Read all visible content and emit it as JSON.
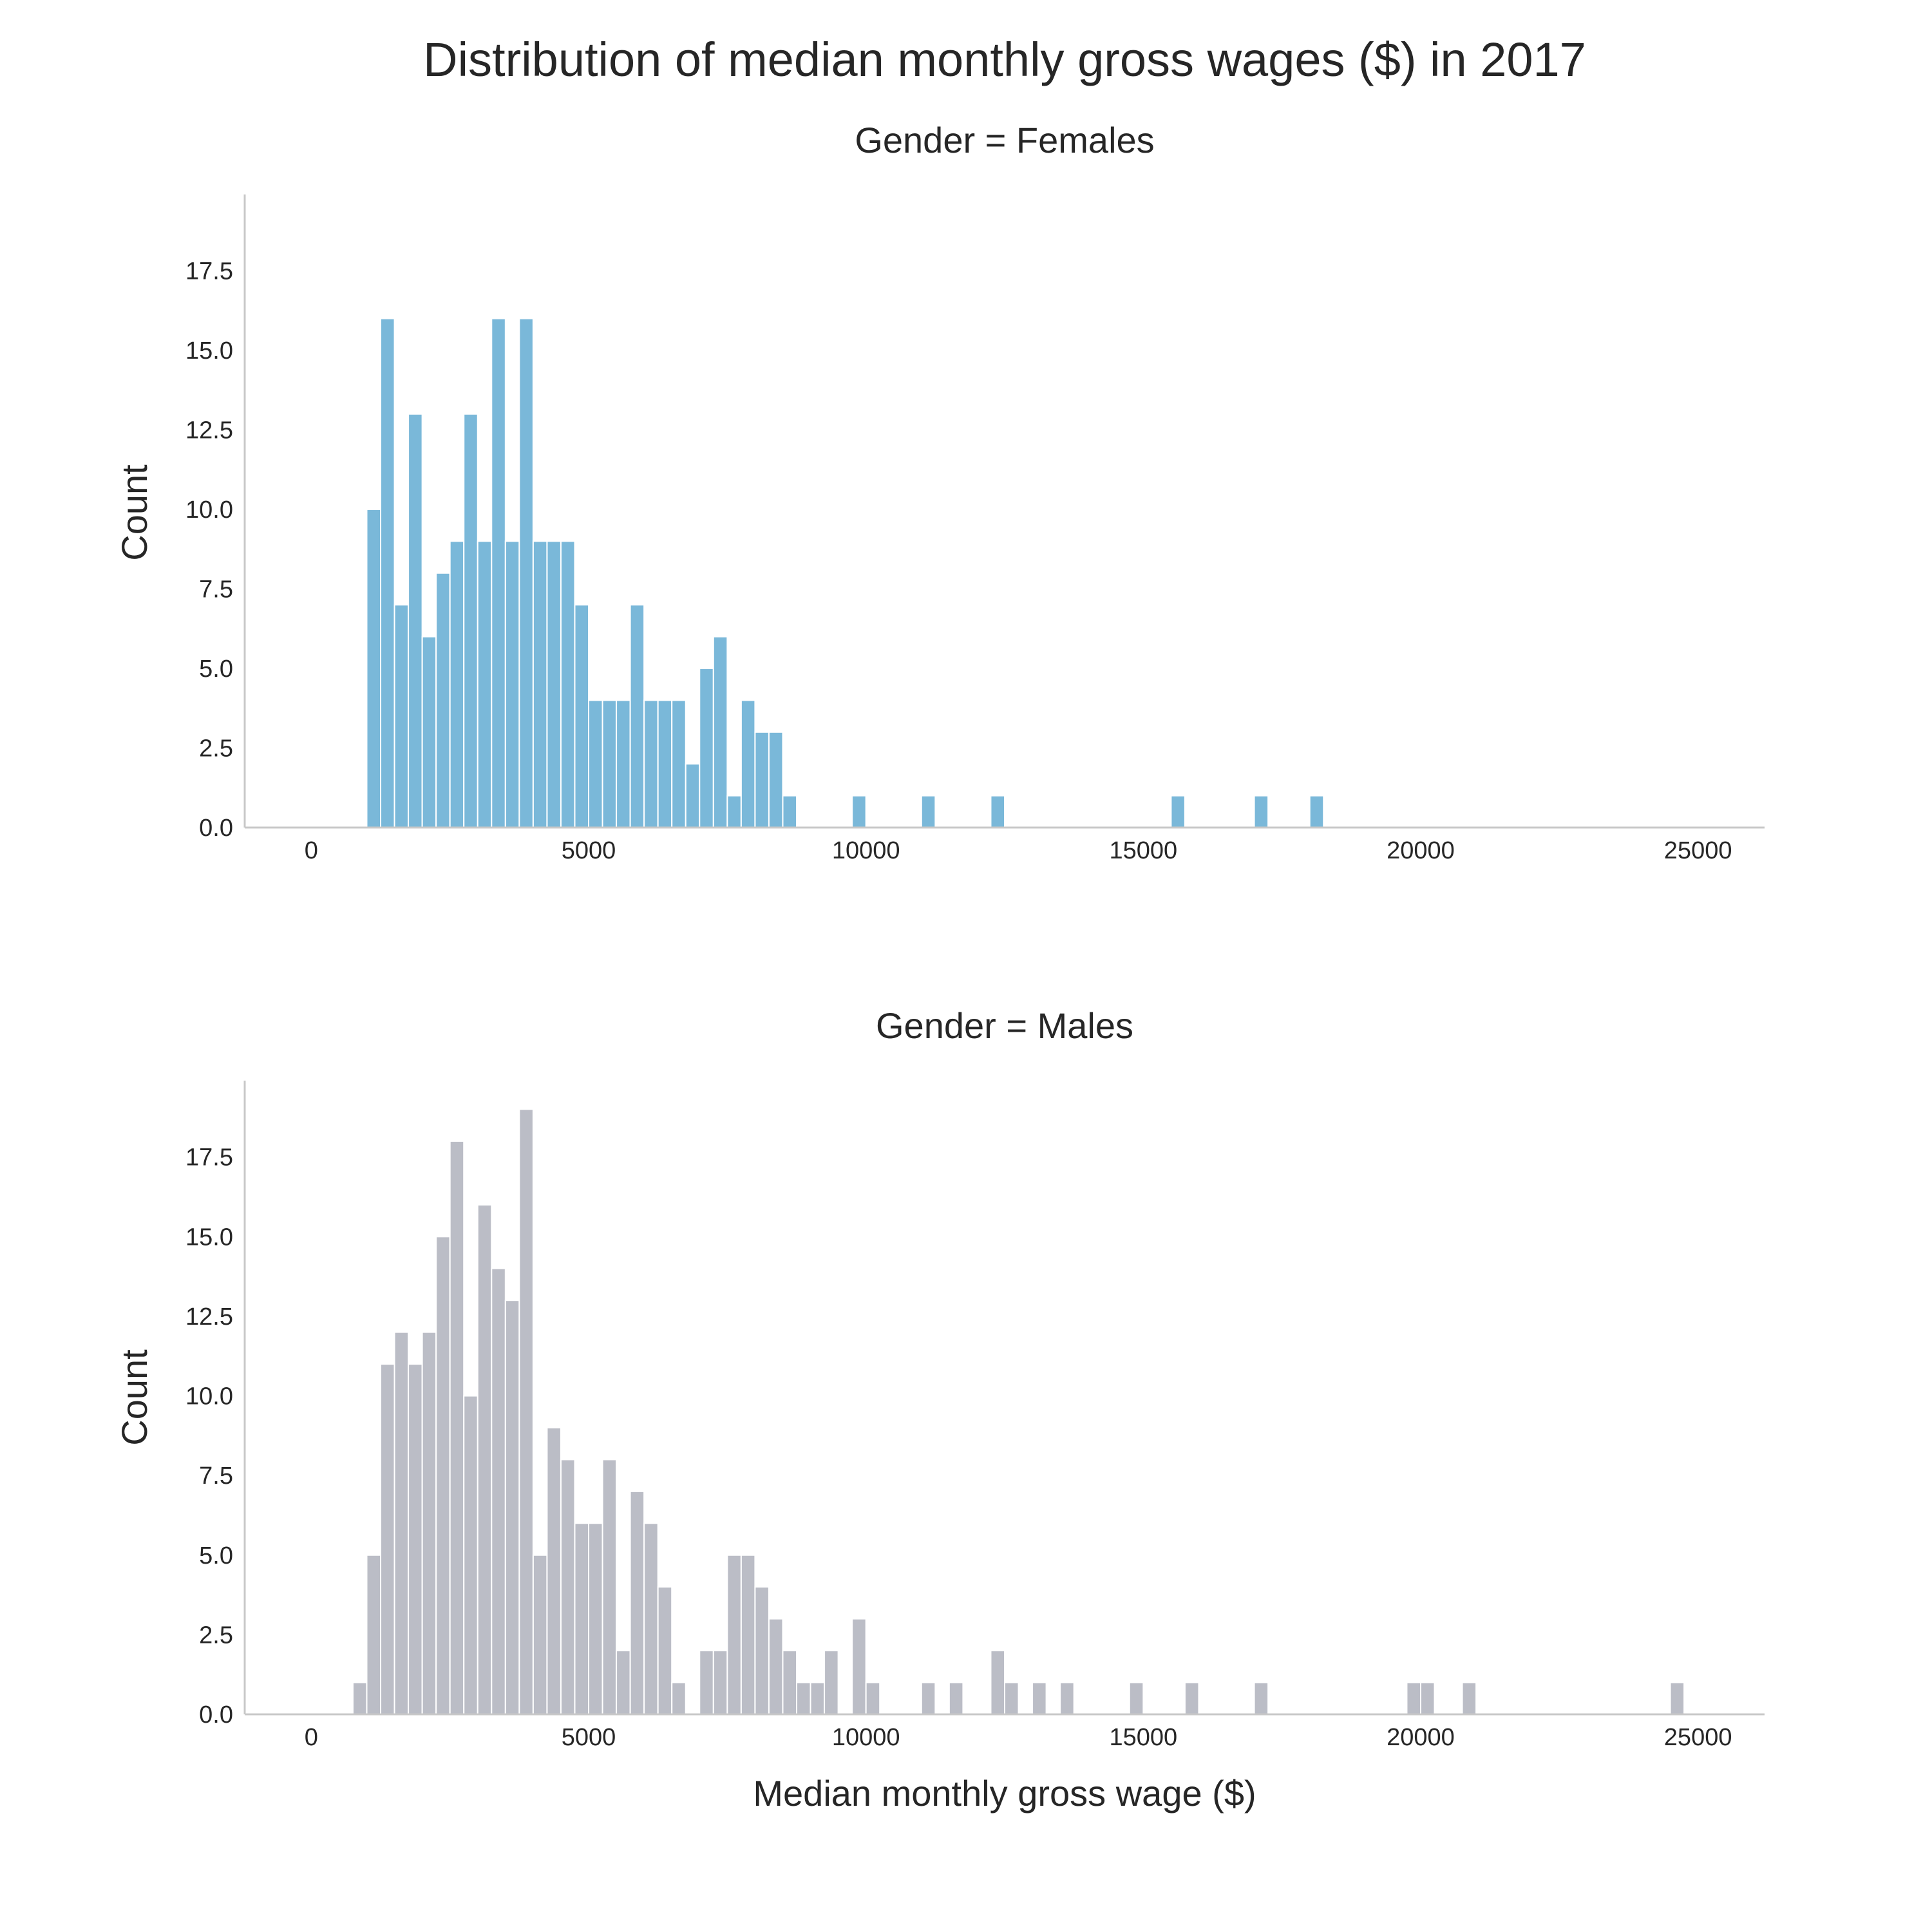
{
  "figure": {
    "title": "Distribution of median monthly gross wages ($) in 2017",
    "xlabel": "Median monthly gross wage ($)"
  },
  "chart_data": [
    {
      "type": "bar",
      "title": "Gender = Females",
      "ylabel": "Count",
      "color": "#7ab8d9",
      "xlim": [
        -1200,
        26200
      ],
      "ylim": [
        0,
        19.9
      ],
      "xticks": [
        0,
        5000,
        10000,
        15000,
        20000,
        25000
      ],
      "yticks": [
        0.0,
        2.5,
        5.0,
        7.5,
        10.0,
        12.5,
        15.0,
        17.5
      ],
      "bin_width": 250,
      "bins": [
        {
          "x": 1000,
          "count": 10
        },
        {
          "x": 1250,
          "count": 16
        },
        {
          "x": 1500,
          "count": 7
        },
        {
          "x": 1750,
          "count": 13
        },
        {
          "x": 2000,
          "count": 6
        },
        {
          "x": 2250,
          "count": 8
        },
        {
          "x": 2500,
          "count": 9
        },
        {
          "x": 2750,
          "count": 13
        },
        {
          "x": 3000,
          "count": 9
        },
        {
          "x": 3250,
          "count": 16
        },
        {
          "x": 3500,
          "count": 9
        },
        {
          "x": 3750,
          "count": 16
        },
        {
          "x": 4000,
          "count": 9
        },
        {
          "x": 4250,
          "count": 9
        },
        {
          "x": 4500,
          "count": 9
        },
        {
          "x": 4750,
          "count": 7
        },
        {
          "x": 5000,
          "count": 4
        },
        {
          "x": 5250,
          "count": 4
        },
        {
          "x": 5500,
          "count": 4
        },
        {
          "x": 5750,
          "count": 7
        },
        {
          "x": 6000,
          "count": 4
        },
        {
          "x": 6250,
          "count": 4
        },
        {
          "x": 6500,
          "count": 4
        },
        {
          "x": 6750,
          "count": 2
        },
        {
          "x": 7000,
          "count": 5
        },
        {
          "x": 7250,
          "count": 6
        },
        {
          "x": 7500,
          "count": 1
        },
        {
          "x": 7750,
          "count": 4
        },
        {
          "x": 8000,
          "count": 3
        },
        {
          "x": 8250,
          "count": 3
        },
        {
          "x": 8500,
          "count": 1
        },
        {
          "x": 9750,
          "count": 1
        },
        {
          "x": 11000,
          "count": 1
        },
        {
          "x": 12250,
          "count": 1
        },
        {
          "x": 15500,
          "count": 1
        },
        {
          "x": 17000,
          "count": 1
        },
        {
          "x": 18000,
          "count": 1
        }
      ]
    },
    {
      "type": "bar",
      "title": "Gender = Males",
      "ylabel": "Count",
      "color": "#bbbdc6",
      "xlim": [
        -1200,
        26200
      ],
      "ylim": [
        0,
        19.9
      ],
      "xticks": [
        0,
        5000,
        10000,
        15000,
        20000,
        25000
      ],
      "yticks": [
        0.0,
        2.5,
        5.0,
        7.5,
        10.0,
        12.5,
        15.0,
        17.5
      ],
      "bin_width": 250,
      "bins": [
        {
          "x": 750,
          "count": 1
        },
        {
          "x": 1000,
          "count": 5
        },
        {
          "x": 1250,
          "count": 11
        },
        {
          "x": 1500,
          "count": 12
        },
        {
          "x": 1750,
          "count": 11
        },
        {
          "x": 2000,
          "count": 12
        },
        {
          "x": 2250,
          "count": 15
        },
        {
          "x": 2500,
          "count": 18
        },
        {
          "x": 2750,
          "count": 10
        },
        {
          "x": 3000,
          "count": 16
        },
        {
          "x": 3250,
          "count": 14
        },
        {
          "x": 3500,
          "count": 13
        },
        {
          "x": 3750,
          "count": 19
        },
        {
          "x": 4000,
          "count": 5
        },
        {
          "x": 4250,
          "count": 9
        },
        {
          "x": 4500,
          "count": 8
        },
        {
          "x": 4750,
          "count": 6
        },
        {
          "x": 5000,
          "count": 6
        },
        {
          "x": 5250,
          "count": 8
        },
        {
          "x": 5500,
          "count": 2
        },
        {
          "x": 5750,
          "count": 7
        },
        {
          "x": 6000,
          "count": 6
        },
        {
          "x": 6250,
          "count": 4
        },
        {
          "x": 6500,
          "count": 1
        },
        {
          "x": 7000,
          "count": 2
        },
        {
          "x": 7250,
          "count": 2
        },
        {
          "x": 7500,
          "count": 5
        },
        {
          "x": 7750,
          "count": 5
        },
        {
          "x": 8000,
          "count": 4
        },
        {
          "x": 8250,
          "count": 3
        },
        {
          "x": 8500,
          "count": 2
        },
        {
          "x": 8750,
          "count": 1
        },
        {
          "x": 9000,
          "count": 1
        },
        {
          "x": 9250,
          "count": 2
        },
        {
          "x": 9750,
          "count": 3
        },
        {
          "x": 10000,
          "count": 1
        },
        {
          "x": 11000,
          "count": 1
        },
        {
          "x": 11500,
          "count": 1
        },
        {
          "x": 12250,
          "count": 2
        },
        {
          "x": 12500,
          "count": 1
        },
        {
          "x": 13000,
          "count": 1
        },
        {
          "x": 13500,
          "count": 1
        },
        {
          "x": 14750,
          "count": 1
        },
        {
          "x": 15750,
          "count": 1
        },
        {
          "x": 17000,
          "count": 1
        },
        {
          "x": 19750,
          "count": 1
        },
        {
          "x": 20000,
          "count": 1
        },
        {
          "x": 20750,
          "count": 1
        },
        {
          "x": 24500,
          "count": 1
        }
      ]
    }
  ]
}
